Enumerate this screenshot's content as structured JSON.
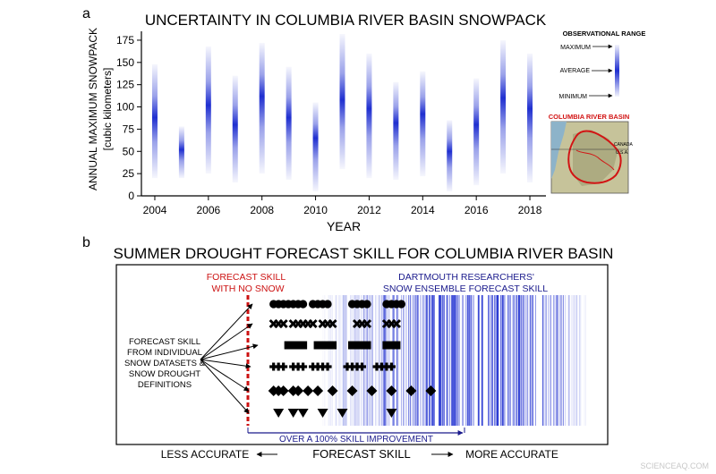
{
  "panel_a": {
    "label": "a",
    "title": "UNCERTAINTY IN COLUMBIA RIVER BASIN SNOWPACK",
    "legend": {
      "title": "OBSERVATIONAL RANGE",
      "maximum": "MAXIMUM",
      "average": "AVERAGE",
      "minimum": "MINIMUM"
    },
    "map_title": "COLUMBIA RIVER BASIN",
    "map_labels": {
      "canada": "CANADA",
      "usa": "U.S.A."
    }
  },
  "panel_b": {
    "label": "b",
    "title": "SUMMER DROUGHT FORECAST SKILL FOR COLUMBIA RIVER BASIN",
    "no_snow_label_1": "FORECAST SKILL",
    "no_snow_label_2": "WITH NO SNOW",
    "ensemble_label_1": "DARTMOUTH RESEARCHERS'",
    "ensemble_label_2": "SNOW ENSEMBLE FORECAST SKILL",
    "left_label": [
      "FORECAST SKILL",
      "FROM INDIVIDUAL",
      "SNOW DATASETS &",
      "SNOW DROUGHT",
      "DEFINITIONS"
    ],
    "improvement": "OVER A 100% SKILL IMPROVEMENT",
    "axis_less": "LESS ACCURATE",
    "axis_center": "FORECAST SKILL",
    "axis_more": "MORE ACCURATE"
  },
  "watermark": "SCIENCEAQ.COM",
  "colors": {
    "range_blue": "#1f2fd0",
    "no_snow_red": "#cc1111",
    "arrow_blue": "#1a1a8c",
    "basin_red": "#d21414"
  },
  "chart_data": [
    {
      "type": "bar",
      "title": "UNCERTAINTY IN COLUMBIA RIVER BASIN SNOWPACK",
      "xlabel": "YEAR",
      "ylabel": "ANNUAL MAXIMUM SNOWPACK",
      "ylabel_unit": "[cubic kilometers]",
      "xlim": [
        2003.5,
        2018.6
      ],
      "ylim": [
        0,
        185
      ],
      "xticks": [
        2004,
        2006,
        2008,
        2010,
        2012,
        2014,
        2016,
        2018
      ],
      "yticks": [
        0,
        25,
        50,
        75,
        100,
        125,
        150,
        175
      ],
      "series": [
        {
          "x": 2004,
          "min": 20,
          "max": 148,
          "avg": 88
        },
        {
          "x": 2005,
          "min": 20,
          "max": 78,
          "avg": 52
        },
        {
          "x": 2006,
          "min": 25,
          "max": 168,
          "avg": 102
        },
        {
          "x": 2007,
          "min": 15,
          "max": 135,
          "avg": 80
        },
        {
          "x": 2008,
          "min": 25,
          "max": 172,
          "avg": 112
        },
        {
          "x": 2009,
          "min": 18,
          "max": 145,
          "avg": 88
        },
        {
          "x": 2010,
          "min": 5,
          "max": 105,
          "avg": 65
        },
        {
          "x": 2011,
          "min": 30,
          "max": 182,
          "avg": 108
        },
        {
          "x": 2012,
          "min": 20,
          "max": 160,
          "avg": 98
        },
        {
          "x": 2013,
          "min": 18,
          "max": 128,
          "avg": 82
        },
        {
          "x": 2014,
          "min": 22,
          "max": 140,
          "avg": 92
        },
        {
          "x": 2015,
          "min": 5,
          "max": 85,
          "avg": 50
        },
        {
          "x": 2016,
          "min": 12,
          "max": 132,
          "avg": 80
        },
        {
          "x": 2017,
          "min": 25,
          "max": 175,
          "avg": 110
        },
        {
          "x": 2018,
          "min": 15,
          "max": 160,
          "avg": 98
        }
      ]
    },
    {
      "type": "scatter",
      "title": "SUMMER DROUGHT FORECAST SKILL FOR COLUMBIA RIVER BASIN",
      "xlabel": "FORECAST SKILL",
      "xlim": [
        0,
        1
      ],
      "no_snow_skill": 0.3,
      "ensemble_skill": 0.78,
      "ensemble_range": [
        0.42,
        0.96
      ],
      "rows": [
        {
          "marker": "circle",
          "values": [
            0.32,
            0.33,
            0.34,
            0.35,
            0.36,
            0.37,
            0.38,
            0.4,
            0.41,
            0.42,
            0.43,
            0.48,
            0.49,
            0.5,
            0.51,
            0.55,
            0.56,
            0.57,
            0.58
          ]
        },
        {
          "marker": "x",
          "values": [
            0.32,
            0.33,
            0.34,
            0.36,
            0.37,
            0.38,
            0.39,
            0.4,
            0.42,
            0.43,
            0.44,
            0.49,
            0.5,
            0.51,
            0.55,
            0.56,
            0.57
          ]
        },
        {
          "marker": "square",
          "values": [
            0.35,
            0.36,
            0.37,
            0.38,
            0.41,
            0.42,
            0.43,
            0.44,
            0.48,
            0.49,
            0.5,
            0.51,
            0.55,
            0.56,
            0.57
          ]
        },
        {
          "marker": "plus",
          "values": [
            0.32,
            0.33,
            0.34,
            0.36,
            0.37,
            0.38,
            0.4,
            0.41,
            0.42,
            0.43,
            0.47,
            0.48,
            0.49,
            0.5,
            0.53,
            0.54,
            0.55,
            0.56
          ]
        },
        {
          "marker": "diamond",
          "values": [
            0.32,
            0.33,
            0.34,
            0.36,
            0.37,
            0.39,
            0.41,
            0.44,
            0.48,
            0.52,
            0.56,
            0.6,
            0.64
          ]
        },
        {
          "marker": "triangle",
          "values": [
            0.33,
            0.36,
            0.38,
            0.42,
            0.46,
            0.56
          ]
        }
      ]
    }
  ]
}
